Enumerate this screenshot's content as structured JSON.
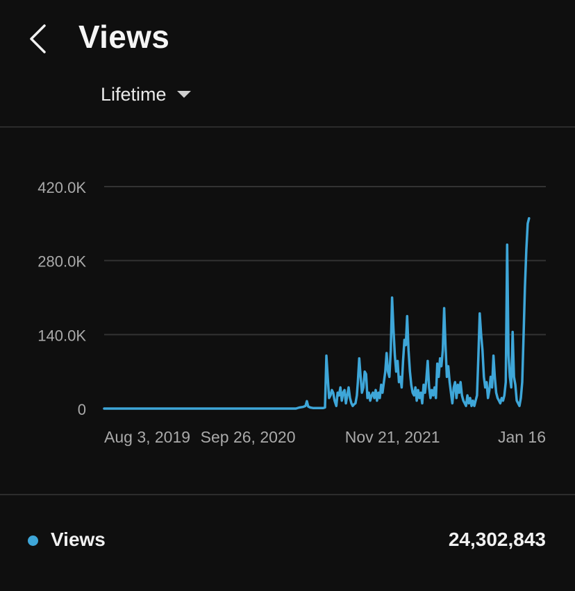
{
  "header": {
    "back_icon": "chevron-left-icon",
    "title": "Views"
  },
  "filter": {
    "period_label": "Lifetime",
    "dropdown_icon": "triangle-down-icon"
  },
  "colors": {
    "background": "#0f0f0f",
    "series": "#3ea6d8",
    "grid": "#333333",
    "tick_text": "#aaaaaa",
    "divider": "#2c2c2c"
  },
  "chart_data": {
    "type": "line",
    "title": "",
    "xlabel": "",
    "ylabel": "",
    "ylim": [
      0,
      420000
    ],
    "y_ticks": [
      {
        "value": 0,
        "label": "0"
      },
      {
        "value": 140000,
        "label": "140.0K"
      },
      {
        "value": 280000,
        "label": "280.0K"
      },
      {
        "value": 420000,
        "label": "420.0K"
      }
    ],
    "x_ticks": [
      {
        "label": "Aug 3, 2019",
        "index": 0
      },
      {
        "label": "Sep 26, 2020",
        "index": 420
      },
      {
        "label": "Nov 21, 2021",
        "index": 842
      },
      {
        "label": "Jan 16",
        "index": 1264
      }
    ],
    "x_range": [
      0,
      1290
    ],
    "grid": true,
    "legend": "bottom",
    "series": [
      {
        "name": "Views",
        "points": [
          [
            0,
            0
          ],
          [
            120,
            0
          ],
          [
            250,
            0
          ],
          [
            400,
            0
          ],
          [
            560,
            0
          ],
          [
            570,
            2000
          ],
          [
            580,
            3000
          ],
          [
            588,
            5000
          ],
          [
            592,
            14000
          ],
          [
            596,
            4000
          ],
          [
            602,
            2000
          ],
          [
            610,
            1000
          ],
          [
            630,
            1000
          ],
          [
            640,
            1000
          ],
          [
            645,
            2000
          ],
          [
            649,
            100000
          ],
          [
            653,
            60000
          ],
          [
            657,
            20000
          ],
          [
            661,
            25000
          ],
          [
            665,
            35000
          ],
          [
            669,
            30000
          ],
          [
            673,
            15000
          ],
          [
            678,
            5000
          ],
          [
            682,
            30000
          ],
          [
            686,
            25000
          ],
          [
            690,
            40000
          ],
          [
            694,
            15000
          ],
          [
            698,
            30000
          ],
          [
            702,
            35000
          ],
          [
            706,
            10000
          ],
          [
            710,
            25000
          ],
          [
            714,
            40000
          ],
          [
            718,
            20000
          ],
          [
            722,
            10000
          ],
          [
            726,
            5000
          ],
          [
            730,
            8000
          ],
          [
            734,
            10000
          ],
          [
            738,
            25000
          ],
          [
            741,
            50000
          ],
          [
            745,
            95000
          ],
          [
            749,
            60000
          ],
          [
            753,
            30000
          ],
          [
            757,
            40000
          ],
          [
            761,
            70000
          ],
          [
            765,
            65000
          ],
          [
            769,
            20000
          ],
          [
            773,
            30000
          ],
          [
            777,
            15000
          ],
          [
            781,
            25000
          ],
          [
            785,
            30000
          ],
          [
            789,
            20000
          ],
          [
            793,
            35000
          ],
          [
            797,
            15000
          ],
          [
            801,
            30000
          ],
          [
            805,
            20000
          ],
          [
            809,
            45000
          ],
          [
            813,
            30000
          ],
          [
            817,
            50000
          ],
          [
            821,
            70000
          ],
          [
            825,
            105000
          ],
          [
            829,
            70000
          ],
          [
            833,
            60000
          ],
          [
            837,
            110000
          ],
          [
            841,
            210000
          ],
          [
            845,
            150000
          ],
          [
            849,
            100000
          ],
          [
            853,
            70000
          ],
          [
            857,
            90000
          ],
          [
            861,
            50000
          ],
          [
            865,
            60000
          ],
          [
            869,
            40000
          ],
          [
            873,
            90000
          ],
          [
            877,
            130000
          ],
          [
            881,
            120000
          ],
          [
            885,
            175000
          ],
          [
            889,
            110000
          ],
          [
            893,
            70000
          ],
          [
            897,
            45000
          ],
          [
            901,
            30000
          ],
          [
            905,
            25000
          ],
          [
            909,
            40000
          ],
          [
            913,
            15000
          ],
          [
            917,
            35000
          ],
          [
            921,
            20000
          ],
          [
            925,
            30000
          ],
          [
            929,
            10000
          ],
          [
            933,
            45000
          ],
          [
            937,
            30000
          ],
          [
            941,
            55000
          ],
          [
            945,
            90000
          ],
          [
            949,
            40000
          ],
          [
            953,
            20000
          ],
          [
            957,
            35000
          ],
          [
            961,
            25000
          ],
          [
            965,
            40000
          ],
          [
            969,
            20000
          ],
          [
            973,
            85000
          ],
          [
            977,
            60000
          ],
          [
            981,
            95000
          ],
          [
            985,
            80000
          ],
          [
            989,
            110000
          ],
          [
            993,
            190000
          ],
          [
            997,
            120000
          ],
          [
            1001,
            60000
          ],
          [
            1005,
            80000
          ],
          [
            1009,
            50000
          ],
          [
            1013,
            30000
          ],
          [
            1017,
            10000
          ],
          [
            1021,
            40000
          ],
          [
            1025,
            50000
          ],
          [
            1029,
            20000
          ],
          [
            1033,
            45000
          ],
          [
            1037,
            30000
          ],
          [
            1041,
            50000
          ],
          [
            1045,
            25000
          ],
          [
            1049,
            15000
          ],
          [
            1053,
            10000
          ],
          [
            1057,
            5000
          ],
          [
            1061,
            25000
          ],
          [
            1065,
            10000
          ],
          [
            1069,
            20000
          ],
          [
            1073,
            5000
          ],
          [
            1077,
            15000
          ],
          [
            1081,
            5000
          ],
          [
            1085,
            15000
          ],
          [
            1089,
            25000
          ],
          [
            1093,
            100000
          ],
          [
            1097,
            180000
          ],
          [
            1101,
            140000
          ],
          [
            1105,
            110000
          ],
          [
            1109,
            60000
          ],
          [
            1113,
            40000
          ],
          [
            1117,
            50000
          ],
          [
            1121,
            20000
          ],
          [
            1125,
            35000
          ],
          [
            1129,
            60000
          ],
          [
            1133,
            40000
          ],
          [
            1137,
            100000
          ],
          [
            1141,
            60000
          ],
          [
            1145,
            30000
          ],
          [
            1149,
            20000
          ],
          [
            1153,
            15000
          ],
          [
            1157,
            10000
          ],
          [
            1161,
            20000
          ],
          [
            1165,
            15000
          ],
          [
            1169,
            25000
          ],
          [
            1173,
            50000
          ],
          [
            1177,
            310000
          ],
          [
            1181,
            100000
          ],
          [
            1185,
            60000
          ],
          [
            1189,
            40000
          ],
          [
            1193,
            145000
          ],
          [
            1197,
            60000
          ],
          [
            1201,
            45000
          ],
          [
            1205,
            15000
          ],
          [
            1209,
            10000
          ],
          [
            1213,
            5000
          ],
          [
            1217,
            20000
          ],
          [
            1221,
            50000
          ],
          [
            1225,
            140000
          ],
          [
            1229,
            230000
          ],
          [
            1233,
            300000
          ],
          [
            1237,
            350000
          ],
          [
            1241,
            360000
          ]
        ]
      }
    ]
  },
  "legend": {
    "series_label": "Views",
    "total": "24,302,843"
  }
}
